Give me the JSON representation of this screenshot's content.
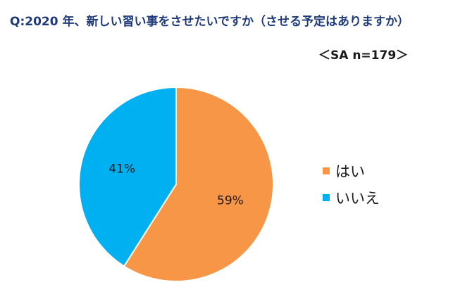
{
  "chart_data": {
    "type": "pie",
    "title": "Q:2020 年、新しい習い事をさせたいですか（させる予定はありますか）",
    "subtitle": "＜SA n=179＞",
    "slices": [
      {
        "label": "はい",
        "value": 59,
        "value_label": "59%",
        "color": "#f79646"
      },
      {
        "label": "いいえ",
        "value": 41,
        "value_label": "41%",
        "color": "#00b0f0"
      }
    ],
    "start_angle": "top",
    "direction": "clockwise",
    "legend_position": "right"
  }
}
